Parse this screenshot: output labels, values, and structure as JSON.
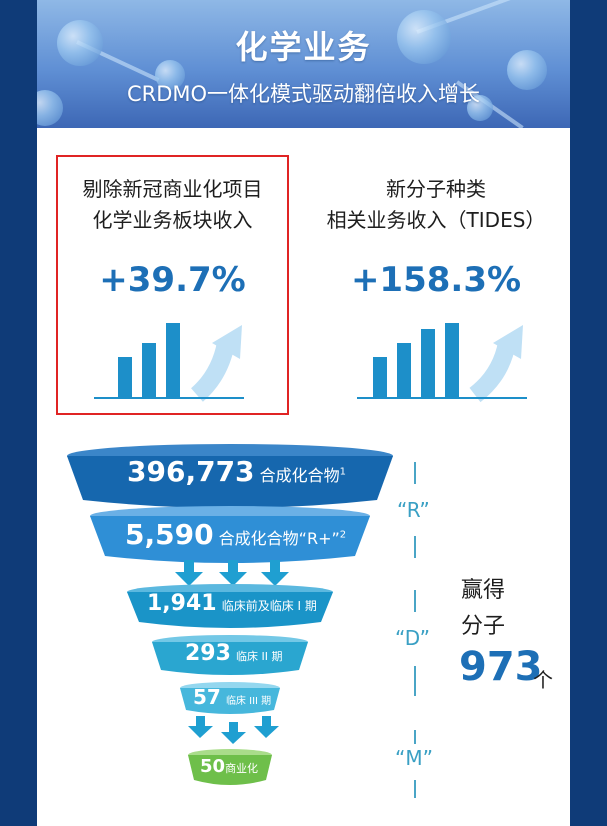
{
  "banner": {
    "title": "化学业务",
    "subtitle": "CRDMO一体化模式驱动翻倍收入增长"
  },
  "stats": [
    {
      "label_line1": "剔除新冠商业化项目",
      "label_line2": "化学业务板块收入",
      "value": "+39.7%",
      "bars": 3
    },
    {
      "label_line1": "新分子种类",
      "label_line2": "相关业务收入（TIDES）",
      "value": "+158.3%",
      "bars": 4
    }
  ],
  "funnel": {
    "tiers": [
      {
        "number": "396,773",
        "label": "合成化合物",
        "sup": "1"
      },
      {
        "number": "5,590",
        "label": "合成化合物“R+”",
        "sup": "2"
      },
      {
        "number": "1,941",
        "label": "临床前及临床 I 期"
      },
      {
        "number": "293",
        "label": "临床 II 期"
      },
      {
        "number": "57",
        "label": "临床 III 期"
      },
      {
        "number": "50",
        "label": "商业化"
      }
    ],
    "phases": [
      "“R”",
      "“D”",
      "“M”"
    ],
    "win_line1": "赢得",
    "win_line2": "分子",
    "win_number": "973",
    "win_unit": "个"
  },
  "colors": {
    "accent_blue": "#1d6fb6",
    "highlight_red": "#e02424",
    "commercial_green": "#6ebf4a",
    "page_frame": "#0f3b78"
  }
}
